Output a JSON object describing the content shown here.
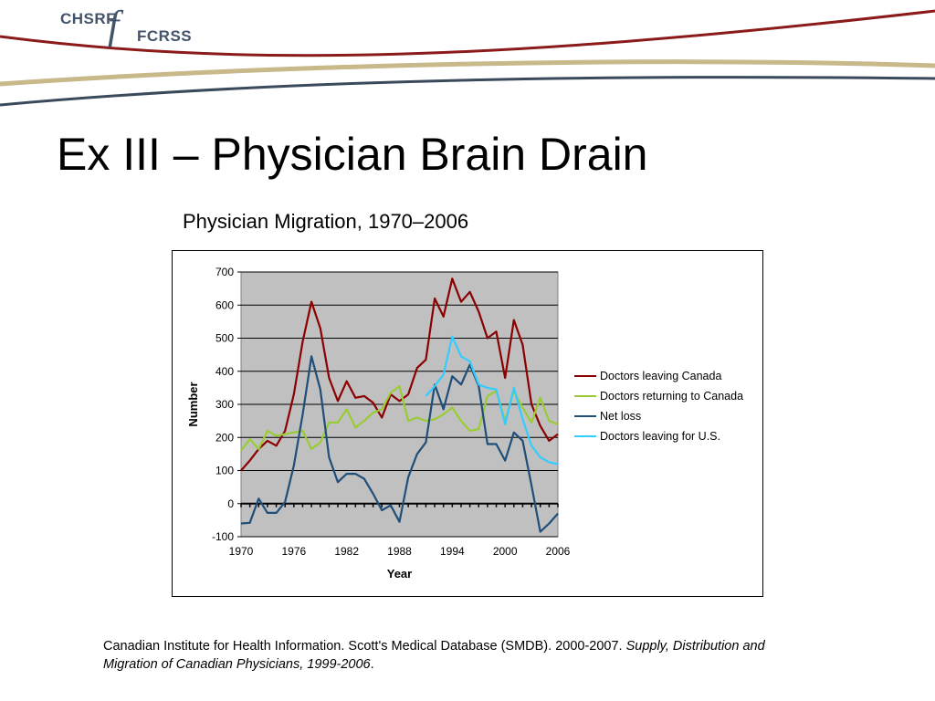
{
  "logo": {
    "left_text": "CHSRF",
    "mark": "f",
    "right_text": "FCRSS"
  },
  "page_title": "Ex III – Physician Brain Drain",
  "chart_caption": "Physician Migration, 1970–2006",
  "colors": {
    "header_band_red": "#8b1a1a",
    "header_band_tan": "#c8b88a",
    "header_band_navy": "#3a4a5c",
    "plot_background": "#c0c0c0"
  },
  "chart_data": {
    "type": "line",
    "title": "",
    "xlabel": "Year",
    "ylabel": "Number",
    "xlim": [
      1970,
      2006
    ],
    "ylim": [
      -100,
      700
    ],
    "yticks": [
      -100,
      0,
      100,
      200,
      300,
      400,
      500,
      600,
      700
    ],
    "xticks": [
      1970,
      1976,
      1982,
      1988,
      1994,
      2000,
      2006
    ],
    "grid": "horizontal",
    "plot_background": "#c0c0c0",
    "legend_position": "right",
    "x": [
      1970,
      1971,
      1972,
      1973,
      1974,
      1975,
      1976,
      1977,
      1978,
      1979,
      1980,
      1981,
      1982,
      1983,
      1984,
      1985,
      1986,
      1987,
      1988,
      1989,
      1990,
      1991,
      1992,
      1993,
      1994,
      1995,
      1996,
      1997,
      1998,
      1999,
      2000,
      2001,
      2002,
      2003,
      2004,
      2005,
      2006
    ],
    "series": [
      {
        "name": "Doctors leaving Canada",
        "color": "#8b0000",
        "values": [
          100,
          130,
          165,
          190,
          175,
          220,
          330,
          490,
          610,
          530,
          380,
          310,
          370,
          320,
          325,
          305,
          260,
          330,
          310,
          330,
          410,
          435,
          620,
          565,
          680,
          610,
          640,
          580,
          500,
          520,
          380,
          555,
          480,
          300,
          235,
          190,
          210
        ]
      },
      {
        "name": "Doctors returning to Canada",
        "color": "#99cc33",
        "values": [
          160,
          195,
          165,
          220,
          205,
          210,
          215,
          220,
          165,
          185,
          245,
          245,
          285,
          230,
          250,
          275,
          285,
          335,
          355,
          250,
          260,
          250,
          255,
          270,
          290,
          250,
          220,
          225,
          325,
          340,
          250,
          340,
          290,
          245,
          320,
          250,
          240
        ]
      },
      {
        "name": "Net loss",
        "color": "#1f4e79",
        "values": [
          -60,
          -58,
          15,
          -28,
          -28,
          5,
          115,
          270,
          445,
          345,
          140,
          65,
          90,
          90,
          75,
          30,
          -20,
          -5,
          -55,
          80,
          150,
          185,
          360,
          285,
          385,
          360,
          420,
          355,
          180,
          180,
          130,
          215,
          190,
          55,
          -85,
          -60,
          -30
        ]
      },
      {
        "name": "Doctors leaving for U.S.",
        "color": "#33ccff",
        "x": [
          1991,
          1992,
          1993,
          1994,
          1995,
          1996,
          1997,
          1998,
          1999,
          2000,
          2001,
          2002,
          2003,
          2004,
          2005,
          2006
        ],
        "values": [
          325,
          355,
          390,
          505,
          445,
          430,
          360,
          350,
          345,
          240,
          350,
          255,
          175,
          140,
          125,
          120
        ]
      }
    ]
  },
  "citation": {
    "plain": "Canadian Institute for Health Information. Scott's Medical Database (SMDB). 2000-2007. ",
    "italic": "Supply, Distribution and Migration of Canadian Physicians, 1999-2006",
    "tail": "."
  }
}
